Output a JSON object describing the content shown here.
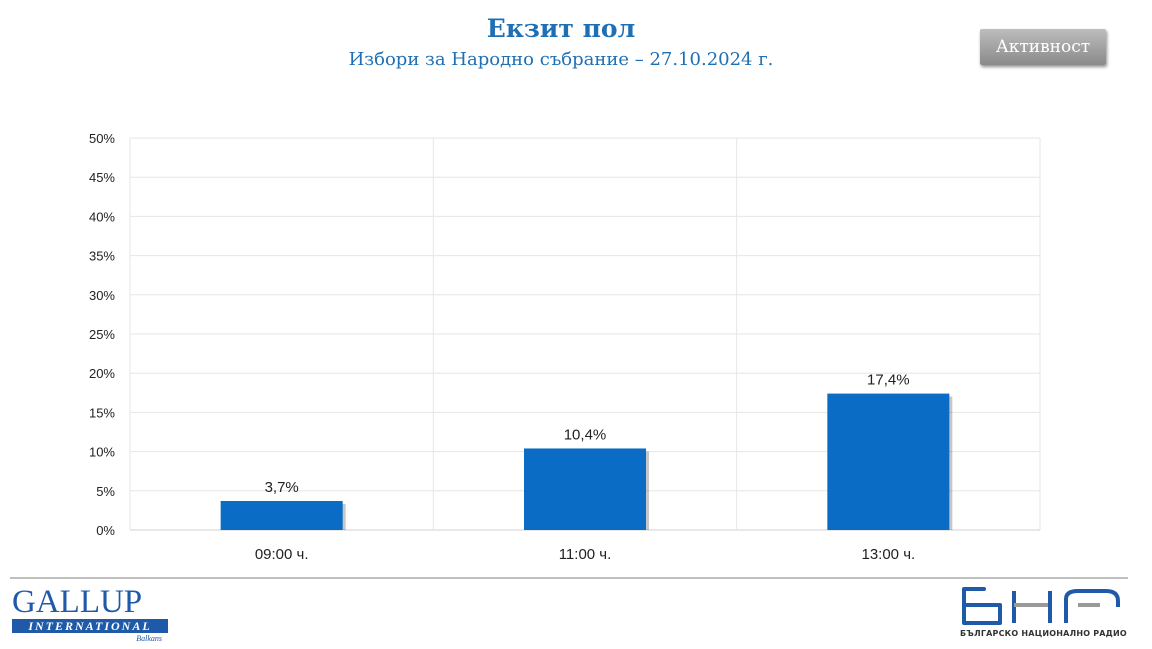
{
  "header": {
    "title": "Екзит пол",
    "subtitle": "Избори за Народно събрание – 27.10.2024 г.",
    "activity_button_label": "Активност"
  },
  "chart_data": {
    "type": "bar",
    "categories": [
      "09:00 ч.",
      "11:00 ч.",
      "13:00 ч."
    ],
    "values": [
      3.7,
      10.4,
      17.4
    ],
    "value_labels": [
      "3,7%",
      "10,4%",
      "17,4%"
    ],
    "ylim": [
      0,
      50
    ],
    "yticks": [
      0,
      5,
      10,
      15,
      20,
      25,
      30,
      35,
      40,
      45,
      50
    ],
    "ytick_labels": [
      "0%",
      "5%",
      "10%",
      "15%",
      "20%",
      "25%",
      "30%",
      "35%",
      "40%",
      "45%",
      "50%"
    ],
    "title": "",
    "xlabel": "",
    "ylabel": "",
    "grid": true,
    "bar_color": "#0a6cc4",
    "grid_color": "#e6e6e6"
  },
  "footer": {
    "gallup_name": "GALLUP",
    "gallup_international": "INTERNATIONAL",
    "gallup_region": "Balkans",
    "bnr_tagline": "БЪЛГАРСКО НАЦИОНАЛНО РАДИО"
  },
  "colors": {
    "title": "#1f6fb5",
    "gallup_blue": "#1f5aa8",
    "bnr_blue": "#1f5aa8",
    "bnr_gray": "#9a9a9a"
  }
}
